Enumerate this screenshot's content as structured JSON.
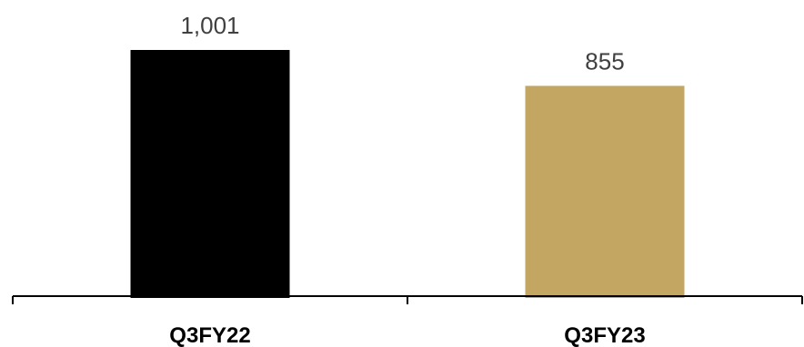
{
  "chart_data": {
    "type": "bar",
    "categories": [
      "Q3FY22",
      "Q3FY23"
    ],
    "values": [
      1001,
      855
    ],
    "value_labels": [
      "1,001",
      "855"
    ],
    "colors": [
      "#000000",
      "#c4a663"
    ],
    "title": "",
    "xlabel": "",
    "ylabel": "",
    "ylim": [
      0,
      1001
    ],
    "grid": false,
    "legend": "none"
  }
}
